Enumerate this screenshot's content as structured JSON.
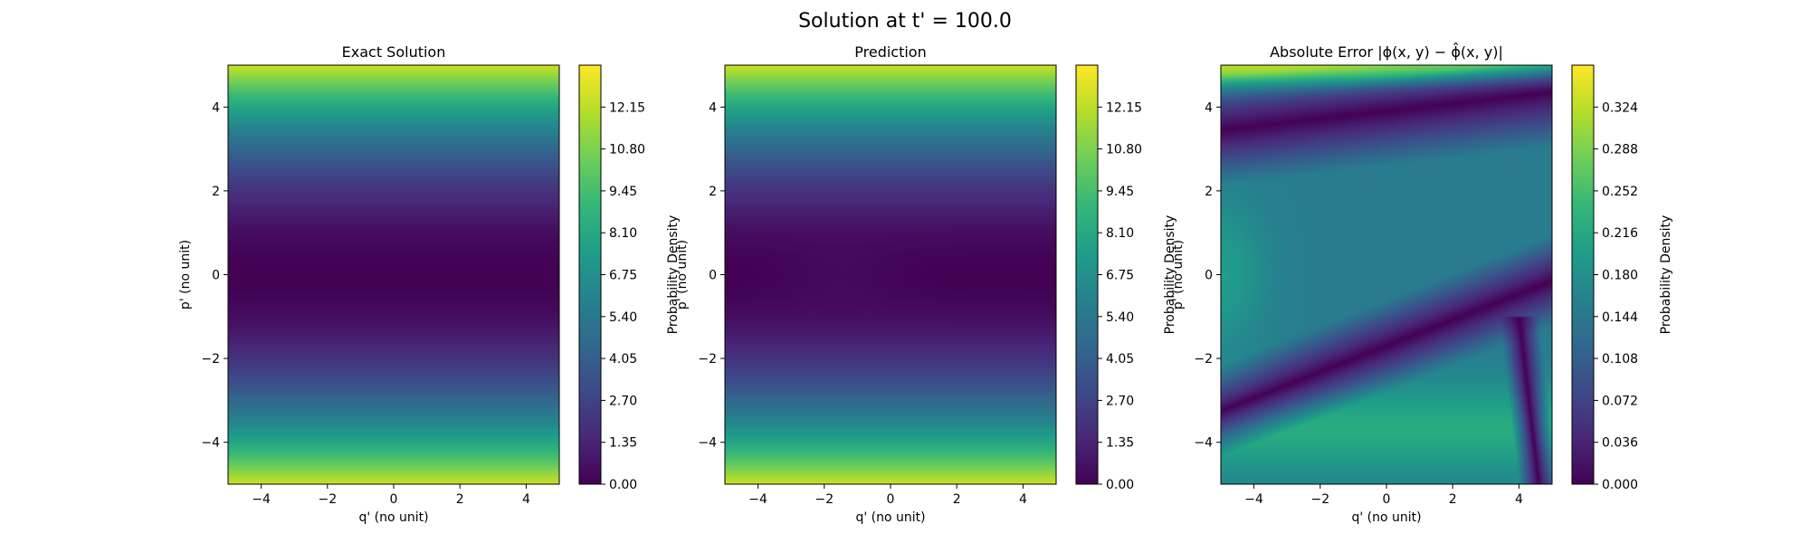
{
  "figure": {
    "title": "Solution at t' = 100.0"
  },
  "colormap": {
    "name": "viridis",
    "stops": [
      "#440154",
      "#482878",
      "#3e4989",
      "#31688e",
      "#26828e",
      "#1f9e89",
      "#35b779",
      "#6ece58",
      "#b5de2b",
      "#fde725"
    ]
  },
  "chart_data": [
    {
      "type": "heatmap",
      "title": "Exact Solution",
      "xlabel": "q' (no unit)",
      "ylabel": "p' (no unit)",
      "xlim": [
        -5,
        5
      ],
      "ylim": [
        -5,
        5
      ],
      "x_ticks": [
        "−4",
        "−2",
        "0",
        "2",
        "4"
      ],
      "y_ticks": [
        "−4",
        "−2",
        "0",
        "2",
        "4"
      ],
      "colorbar_label": "Probability Density",
      "colorbar_range": [
        0,
        13.5
      ],
      "colorbar_ticks": [
        "0.00",
        "1.35",
        "2.70",
        "4.05",
        "5.40",
        "6.75",
        "8.10",
        "9.45",
        "10.80",
        "12.15"
      ],
      "field": "p^2 / 2 (constant along q')"
    },
    {
      "type": "heatmap",
      "title": "Prediction",
      "xlabel": "q' (no unit)",
      "ylabel": "p' (no unit)",
      "xlim": [
        -5,
        5
      ],
      "ylim": [
        -5,
        5
      ],
      "x_ticks": [
        "−4",
        "−2",
        "0",
        "2",
        "4"
      ],
      "y_ticks": [
        "−4",
        "−2",
        "0",
        "2",
        "4"
      ],
      "colorbar_label": "Probability Density",
      "colorbar_range": [
        0,
        13.5
      ],
      "colorbar_ticks": [
        "0.00",
        "1.35",
        "2.70",
        "4.05",
        "5.40",
        "6.75",
        "8.10",
        "9.45",
        "10.80",
        "12.15"
      ],
      "field": "approximately p^2 / 2"
    },
    {
      "type": "heatmap",
      "title": "Absolute Error |ϕ(x, y) − ϕ̂(x, y)|",
      "xlabel": "q' (no unit)",
      "ylabel": "p' (no unit)",
      "xlim": [
        -5,
        5
      ],
      "ylim": [
        -5,
        5
      ],
      "x_ticks": [
        "−4",
        "−2",
        "0",
        "2",
        "4"
      ],
      "y_ticks": [
        "−4",
        "−2",
        "0",
        "2",
        "4"
      ],
      "colorbar_label": "Probability Density",
      "colorbar_range": [
        0,
        0.36
      ],
      "colorbar_ticks": [
        "0.000",
        "0.036",
        "0.072",
        "0.108",
        "0.144",
        "0.180",
        "0.216",
        "0.252",
        "0.288",
        "0.324"
      ],
      "field": "error; maximum near top edge, zero bands near p'≈3.9+0.09q' and p'≈−1.7+0.31q'"
    }
  ]
}
